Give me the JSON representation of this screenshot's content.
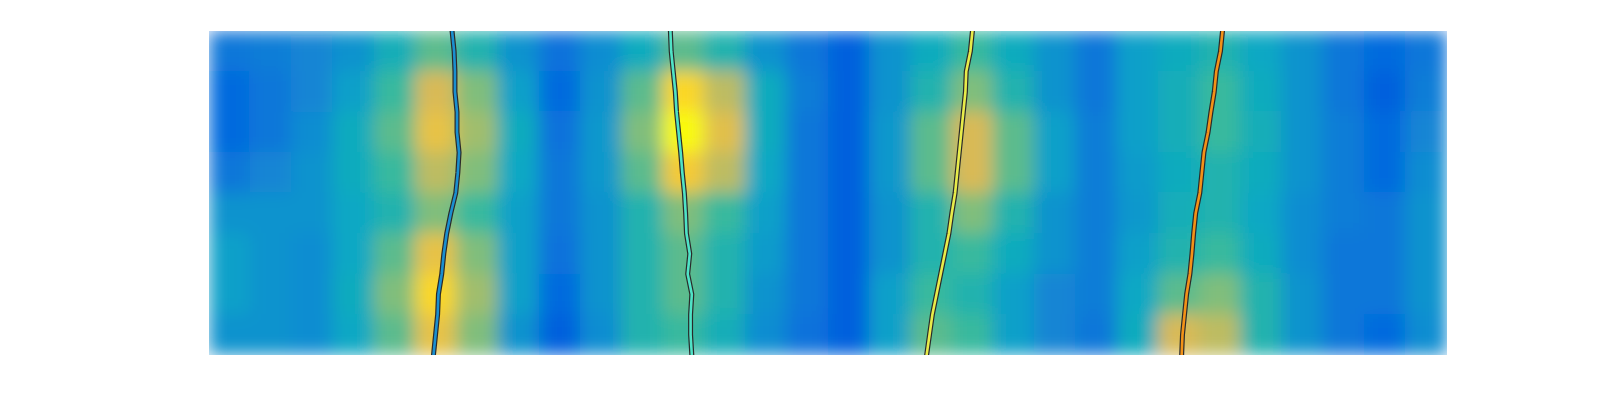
{
  "chart_data": {
    "type": "heatmap",
    "tick_labels": false,
    "xlim": [
      0,
      30
    ],
    "ylim": [
      0,
      8
    ],
    "zlim": [
      0,
      1
    ],
    "cells": [
      [
        0.2,
        0.22,
        0.25,
        0.3,
        0.42,
        0.55,
        0.45,
        0.3,
        0.18,
        0.28,
        0.4,
        0.55,
        0.45,
        0.3,
        0.2,
        0.12,
        0.3,
        0.4,
        0.5,
        0.4,
        0.3,
        0.2,
        0.35,
        0.4,
        0.45,
        0.38,
        0.3,
        0.2,
        0.15,
        0.2
      ],
      [
        0.15,
        0.2,
        0.25,
        0.35,
        0.5,
        0.75,
        0.6,
        0.35,
        0.15,
        0.3,
        0.55,
        0.9,
        0.7,
        0.4,
        0.22,
        0.12,
        0.3,
        0.45,
        0.6,
        0.45,
        0.3,
        0.2,
        0.35,
        0.42,
        0.5,
        0.4,
        0.3,
        0.2,
        0.12,
        0.22
      ],
      [
        0.15,
        0.2,
        0.28,
        0.4,
        0.55,
        0.8,
        0.65,
        0.4,
        0.18,
        0.32,
        0.6,
        1.0,
        0.78,
        0.4,
        0.2,
        0.12,
        0.32,
        0.55,
        0.75,
        0.55,
        0.35,
        0.22,
        0.35,
        0.42,
        0.5,
        0.42,
        0.3,
        0.22,
        0.15,
        0.25
      ],
      [
        0.2,
        0.25,
        0.3,
        0.4,
        0.5,
        0.7,
        0.6,
        0.38,
        0.2,
        0.32,
        0.55,
        0.85,
        0.7,
        0.38,
        0.2,
        0.12,
        0.32,
        0.55,
        0.75,
        0.55,
        0.35,
        0.22,
        0.33,
        0.4,
        0.45,
        0.4,
        0.3,
        0.22,
        0.15,
        0.28
      ],
      [
        0.3,
        0.3,
        0.3,
        0.38,
        0.45,
        0.6,
        0.5,
        0.35,
        0.2,
        0.3,
        0.45,
        0.6,
        0.5,
        0.35,
        0.2,
        0.12,
        0.3,
        0.45,
        0.6,
        0.45,
        0.3,
        0.22,
        0.32,
        0.42,
        0.45,
        0.38,
        0.28,
        0.22,
        0.2,
        0.3
      ],
      [
        0.35,
        0.3,
        0.28,
        0.38,
        0.55,
        0.8,
        0.6,
        0.35,
        0.18,
        0.3,
        0.45,
        0.55,
        0.45,
        0.33,
        0.2,
        0.12,
        0.3,
        0.45,
        0.5,
        0.4,
        0.3,
        0.22,
        0.35,
        0.45,
        0.5,
        0.4,
        0.28,
        0.2,
        0.2,
        0.3
      ],
      [
        0.35,
        0.3,
        0.28,
        0.4,
        0.6,
        0.9,
        0.65,
        0.35,
        0.15,
        0.3,
        0.45,
        0.55,
        0.45,
        0.3,
        0.2,
        0.12,
        0.35,
        0.5,
        0.45,
        0.35,
        0.25,
        0.22,
        0.38,
        0.55,
        0.6,
        0.45,
        0.3,
        0.2,
        0.2,
        0.3
      ],
      [
        0.3,
        0.3,
        0.28,
        0.38,
        0.55,
        0.8,
        0.6,
        0.3,
        0.12,
        0.28,
        0.45,
        0.5,
        0.42,
        0.28,
        0.18,
        0.12,
        0.35,
        0.55,
        0.5,
        0.35,
        0.25,
        0.2,
        0.4,
        0.75,
        0.7,
        0.45,
        0.3,
        0.2,
        0.15,
        0.28
      ]
    ],
    "series": [
      {
        "color": "#1a8fd0",
        "type": "line",
        "x": [
          5.89,
          5.94,
          5.96,
          5.96,
          6.01,
          6.01,
          6.06,
          6.03,
          5.98,
          5.86,
          5.76,
          5.69,
          5.64,
          5.56,
          5.54,
          5.49,
          5.44
        ],
        "values": [
          0,
          0.5,
          1,
          1.5,
          2,
          2.5,
          3,
          3.5,
          4,
          4.5,
          5,
          5.5,
          6,
          6.5,
          7,
          7.5,
          8
        ]
      },
      {
        "color": "#4fe3c6",
        "type": "line",
        "x": [
          11.18,
          11.2,
          11.25,
          11.3,
          11.33,
          11.38,
          11.43,
          11.47,
          11.52,
          11.55,
          11.57,
          11.65,
          11.6,
          11.7,
          11.67,
          11.67,
          11.7
        ],
        "values": [
          0,
          0.5,
          1,
          1.5,
          2,
          2.5,
          3,
          3.5,
          4,
          4.5,
          5,
          5.5,
          6,
          6.5,
          7,
          7.5,
          8
        ]
      },
      {
        "color": "#e8ec4a",
        "type": "line",
        "x": [
          18.5,
          18.45,
          18.35,
          18.33,
          18.28,
          18.23,
          18.18,
          18.13,
          18.08,
          18.0,
          17.93,
          17.83,
          17.73,
          17.63,
          17.53,
          17.46,
          17.39
        ],
        "values": [
          0,
          0.5,
          1,
          1.5,
          2,
          2.5,
          3,
          3.5,
          4,
          4.5,
          5,
          5.5,
          6,
          6.5,
          7,
          7.5,
          8
        ]
      },
      {
        "color": "#f39217",
        "type": "line",
        "x": [
          24.56,
          24.51,
          24.41,
          24.36,
          24.28,
          24.21,
          24.11,
          24.06,
          24.01,
          23.91,
          23.86,
          23.82,
          23.77,
          23.69,
          23.64,
          23.59,
          23.57
        ],
        "values": [
          0,
          0.5,
          1,
          1.5,
          2,
          2.5,
          3,
          3.5,
          4,
          4.5,
          5,
          5.5,
          6,
          6.5,
          7,
          7.5,
          8
        ]
      }
    ]
  }
}
